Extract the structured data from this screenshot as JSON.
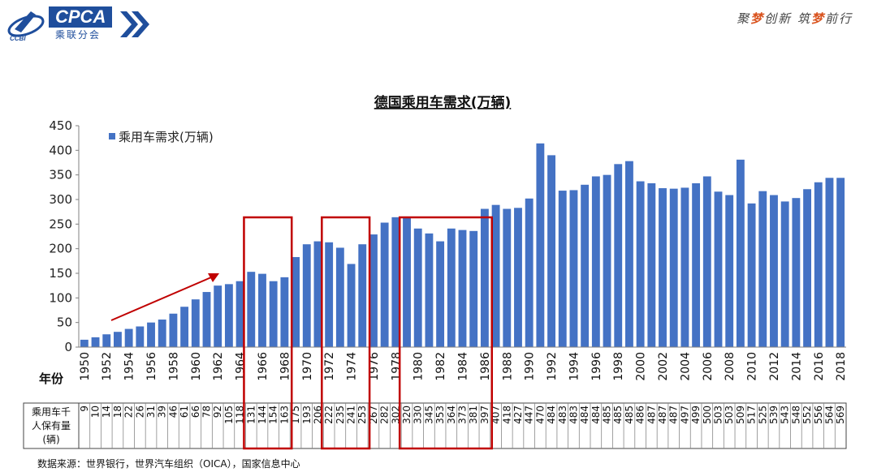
{
  "header": {
    "logo_text": "CPCA",
    "logo_subtitle": "乘联分会",
    "slogan_a": "聚",
    "slogan_b": "梦",
    "slogan_c": "创新",
    "slogan_d": "筑",
    "slogan_e": "梦",
    "slogan_f": "前行",
    "accent_color": "#1f4e9c",
    "slogan_highlight_color": "#d9531e"
  },
  "chart_data": {
    "type": "bar",
    "title": "德国乘用车需求(万辆)",
    "legend": "乘用车需求(万辆)",
    "legend_position": "top-left",
    "xlabel": "年份",
    "ylabel": "",
    "ylim": [
      0,
      450
    ],
    "yticks": [
      0,
      50,
      100,
      150,
      200,
      250,
      300,
      350,
      400,
      450
    ],
    "bar_color": "#4472c4",
    "highlight_color": "#c00000",
    "years": [
      1950,
      1951,
      1952,
      1953,
      1954,
      1955,
      1956,
      1957,
      1958,
      1959,
      1960,
      1961,
      1962,
      1963,
      1964,
      1965,
      1966,
      1967,
      1968,
      1969,
      1970,
      1971,
      1972,
      1973,
      1974,
      1975,
      1976,
      1977,
      1978,
      1979,
      1980,
      1981,
      1982,
      1983,
      1984,
      1985,
      1986,
      1987,
      1988,
      1989,
      1990,
      1991,
      1992,
      1993,
      1994,
      1995,
      1996,
      1997,
      1998,
      1999,
      2000,
      2001,
      2002,
      2003,
      2004,
      2005,
      2006,
      2007,
      2008,
      2009,
      2010,
      2011,
      2012,
      2013,
      2014,
      2015,
      2016,
      2017,
      2018
    ],
    "values": [
      15,
      20,
      26,
      31,
      37,
      42,
      50,
      56,
      68,
      82,
      97,
      112,
      125,
      128,
      134,
      153,
      149,
      134,
      142,
      183,
      209,
      215,
      213,
      202,
      169,
      209,
      229,
      253,
      264,
      263,
      241,
      231,
      215,
      241,
      238,
      236,
      281,
      289,
      281,
      283,
      302,
      414,
      390,
      318,
      319,
      330,
      347,
      350,
      372,
      378,
      337,
      333,
      323,
      322,
      324,
      333,
      347,
      316,
      309,
      381,
      292,
      317,
      309,
      296,
      303,
      321,
      335,
      344,
      344
    ],
    "ownership_label_line1": "乘用车千",
    "ownership_label_line2": "人保有量",
    "ownership_label_line3": "(辆)",
    "ownership_per_1000": [
      "9",
      "10",
      "14",
      "18",
      "22",
      "26",
      "31",
      "39",
      "46",
      "61",
      "66",
      "78",
      "92",
      "105",
      "118",
      "131",
      "144",
      "154",
      "163",
      "175",
      "193",
      "206",
      "222",
      "235",
      "241",
      "253",
      "267",
      "282",
      "302",
      "320",
      "330",
      "345",
      "353",
      "364",
      "373",
      "381",
      "397",
      "407",
      "418",
      "427",
      "447",
      "470",
      "484",
      "483",
      "483",
      "484",
      "484",
      "485",
      "485",
      "485",
      "486",
      "487",
      "487",
      "487",
      "497",
      "499",
      "500",
      "503",
      "503",
      "509",
      "517",
      "525",
      "539",
      "543",
      "548",
      "552",
      "556",
      "564",
      "569"
    ],
    "highlight_groups": [
      [
        1965,
        1968
      ],
      [
        1972,
        1975
      ],
      [
        1979,
        1986
      ]
    ],
    "annotation": "upward trend arrow 1950–1964",
    "source": "数据来源：世界银行，世界汽车组织（OICA），国家信息中心"
  }
}
